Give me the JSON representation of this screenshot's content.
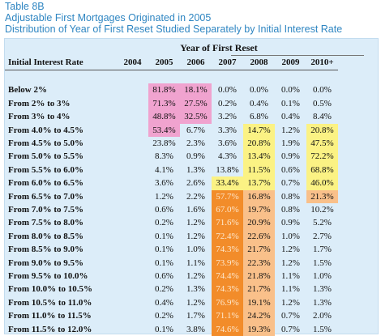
{
  "titles": {
    "line1": "Table 8B",
    "line2": "Adjustable First Mortgages Originated in 2005",
    "line3": "Distribution of Year of First Reset Studied Separately by Initial Interest Rate"
  },
  "table": {
    "group_header": "Year of First Reset",
    "row_header": "Initial Interest Rate",
    "years": [
      "2004",
      "2005",
      "2006",
      "2007",
      "2008",
      "2009",
      "2010+"
    ],
    "rows": [
      {
        "label": "Below 2%",
        "values": [
          "",
          "81.8%",
          "18.1%",
          "0.0%",
          "0.0%",
          "0.0%",
          "0.0%"
        ]
      },
      {
        "label": "From 2% to 3%",
        "values": [
          "",
          "71.3%",
          "27.5%",
          "0.2%",
          "0.4%",
          "0.1%",
          "0.5%"
        ]
      },
      {
        "label": "From 3% to 4%",
        "values": [
          "",
          "48.8%",
          "32.5%",
          "3.2%",
          "6.8%",
          "0.4%",
          "8.4%"
        ]
      },
      {
        "label": "From 4.0% to 4.5%",
        "values": [
          "",
          "53.4%",
          "6.7%",
          "3.3%",
          "14.7%",
          "1.2%",
          "20.8%"
        ]
      },
      {
        "label": "From 4.5% to 5.0%",
        "values": [
          "",
          "23.8%",
          "2.3%",
          "3.6%",
          "20.8%",
          "1.9%",
          "47.5%"
        ]
      },
      {
        "label": "From 5.0% to 5.5%",
        "values": [
          "",
          "8.3%",
          "0.9%",
          "4.3%",
          "13.4%",
          "0.9%",
          "72.2%"
        ]
      },
      {
        "label": "From 5.5% to 6.0%",
        "values": [
          "",
          "4.1%",
          "1.3%",
          "13.8%",
          "11.5%",
          "0.6%",
          "68.8%"
        ]
      },
      {
        "label": "From 6.0% to 6.5%",
        "values": [
          "",
          "3.6%",
          "2.6%",
          "33.4%",
          "13.7%",
          "0.7%",
          "46.0%"
        ]
      },
      {
        "label": "From 6.5% to 7.0%",
        "values": [
          "",
          "1.2%",
          "2.2%",
          "57.7%",
          "16.8%",
          "0.8%",
          "21.3%"
        ]
      },
      {
        "label": "From 7.0% to 7.5%",
        "values": [
          "",
          "0.6%",
          "1.6%",
          "67.0%",
          "19.7%",
          "0.8%",
          "10.2%"
        ]
      },
      {
        "label": "From 7.5% to 8.0%",
        "values": [
          "",
          "0.2%",
          "1.2%",
          "71.6%",
          "20.9%",
          "0.9%",
          "5.2%"
        ]
      },
      {
        "label": "From 8.0% to 8.5%",
        "values": [
          "",
          "0.1%",
          "1.2%",
          "72.4%",
          "22.6%",
          "1.0%",
          "2.7%"
        ]
      },
      {
        "label": "From 8.5% to 9.0%",
        "values": [
          "",
          "0.1%",
          "1.0%",
          "74.3%",
          "21.7%",
          "1.2%",
          "1.7%"
        ]
      },
      {
        "label": "From 9.0% to 9.5%",
        "values": [
          "",
          "0.1%",
          "1.1%",
          "73.9%",
          "22.3%",
          "1.2%",
          "1.5%"
        ]
      },
      {
        "label": "From 9.5% to 10.0%",
        "values": [
          "",
          "0.6%",
          "1.2%",
          "74.4%",
          "21.8%",
          "1.1%",
          "1.0%"
        ]
      },
      {
        "label": "From 10.0% to 10.5%",
        "values": [
          "",
          "0.2%",
          "1.3%",
          "74.3%",
          "21.7%",
          "1.1%",
          "1.3%"
        ]
      },
      {
        "label": "From 10.5% to 11.0%",
        "values": [
          "",
          "0.4%",
          "1.2%",
          "76.9%",
          "19.1%",
          "1.2%",
          "1.3%"
        ]
      },
      {
        "label": "From 11.0% to 11.5%",
        "values": [
          "",
          "0.2%",
          "1.7%",
          "71.1%",
          "24.2%",
          "0.7%",
          "2.0%"
        ]
      },
      {
        "label": "From 11.5% to 12.0%",
        "values": [
          "",
          "0.1%",
          "3.8%",
          "74.6%",
          "19.3%",
          "0.7%",
          "1.5%"
        ]
      }
    ],
    "highlights": [
      [
        "",
        "pink",
        "pink",
        "",
        "",
        "",
        ""
      ],
      [
        "",
        "pink",
        "pink",
        "",
        "",
        "",
        ""
      ],
      [
        "",
        "pink",
        "pink",
        "",
        "",
        "",
        ""
      ],
      [
        "",
        "pink",
        "",
        "",
        "yellow",
        "",
        "yellow"
      ],
      [
        "",
        "",
        "",
        "",
        "yellow",
        "",
        "yellow"
      ],
      [
        "",
        "",
        "",
        "",
        "yellow",
        "",
        "yellow"
      ],
      [
        "",
        "",
        "",
        "",
        "yellow",
        "",
        "yellow"
      ],
      [
        "",
        "",
        "",
        "yellow",
        "yellow",
        "",
        "yellow"
      ],
      [
        "",
        "",
        "",
        "orange",
        "peach",
        "",
        "peach"
      ],
      [
        "",
        "",
        "",
        "orange",
        "peach",
        "",
        ""
      ],
      [
        "",
        "",
        "",
        "orange",
        "peach",
        "",
        ""
      ],
      [
        "",
        "",
        "",
        "orange",
        "peach",
        "",
        ""
      ],
      [
        "",
        "",
        "",
        "orange",
        "peach",
        "",
        ""
      ],
      [
        "",
        "",
        "",
        "orange",
        "peach",
        "",
        ""
      ],
      [
        "",
        "",
        "",
        "orange",
        "peach",
        "",
        ""
      ],
      [
        "",
        "",
        "",
        "orange",
        "peach",
        "",
        ""
      ],
      [
        "",
        "",
        "",
        "orange",
        "peach",
        "",
        ""
      ],
      [
        "",
        "",
        "",
        "orange",
        "peach",
        "",
        ""
      ],
      [
        "",
        "",
        "",
        "orange",
        "peach",
        "",
        ""
      ]
    ],
    "colors": {
      "title": "#2f86c2",
      "panel_background": "#dcedf9",
      "pink": "#f0a3cf",
      "yellow": "#fbf284",
      "orange": "#f28c2a",
      "peach": "#f9c08a"
    }
  }
}
